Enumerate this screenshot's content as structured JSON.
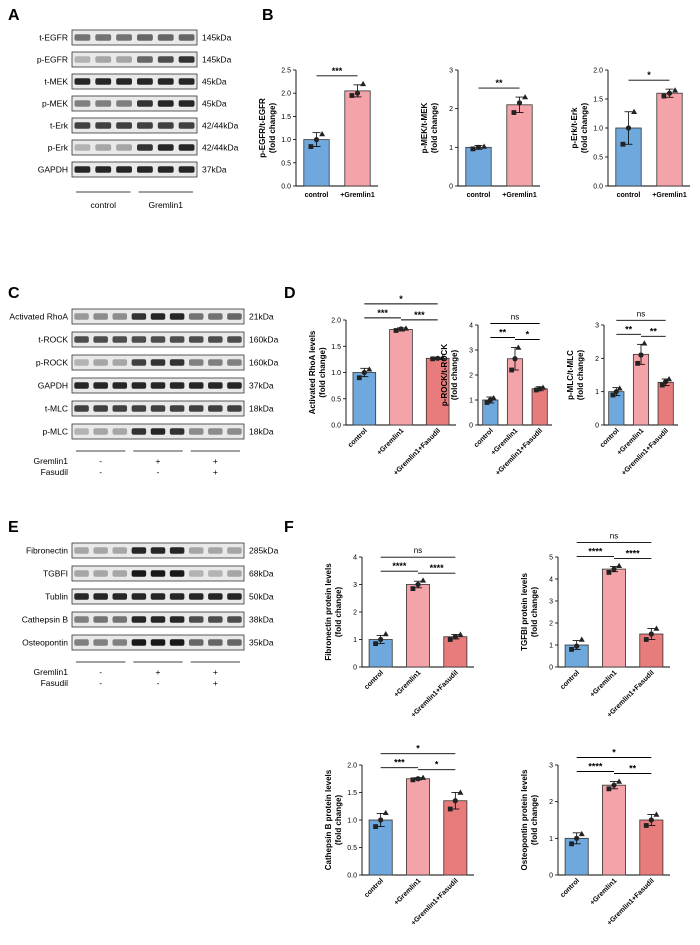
{
  "panels": {
    "A": "A",
    "B": "B",
    "C": "C",
    "D": "D",
    "E": "E",
    "F": "F"
  },
  "blots": [
    {
      "id": "A",
      "lanes": 6,
      "groups": [
        {
          "label": "control",
          "from": 0,
          "to": 3
        },
        {
          "label": "Gremlin1",
          "from": 3,
          "to": 6
        }
      ],
      "treat_rows": [],
      "rows": [
        {
          "name": "t-EGFR",
          "kda": "145kDa",
          "pattern": [
            0.55,
            0.55,
            0.55,
            0.6,
            0.6,
            0.6
          ]
        },
        {
          "name": "p-EGFR",
          "kda": "145kDa",
          "pattern": [
            0.3,
            0.35,
            0.35,
            0.6,
            0.7,
            0.8
          ]
        },
        {
          "name": "t-MEK",
          "kda": "45kDa",
          "pattern": [
            0.85,
            0.85,
            0.85,
            0.85,
            0.85,
            0.85
          ]
        },
        {
          "name": "p-MEK",
          "kda": "45kDa",
          "pattern": [
            0.5,
            0.5,
            0.5,
            0.8,
            0.85,
            0.85
          ]
        },
        {
          "name": "t-Erk",
          "kda": "42/44kDa",
          "pattern": [
            0.75,
            0.75,
            0.75,
            0.75,
            0.75,
            0.75
          ]
        },
        {
          "name": "p-Erk",
          "kda": "42/44kDa",
          "pattern": [
            0.3,
            0.35,
            0.35,
            0.8,
            0.85,
            0.85
          ]
        },
        {
          "name": "GAPDH",
          "kda": "37kDa",
          "pattern": [
            0.85,
            0.85,
            0.85,
            0.85,
            0.85,
            0.85
          ]
        }
      ]
    },
    {
      "id": "C",
      "lanes": 9,
      "groups": [],
      "treat_rows": [
        {
          "name": "Gremlin1",
          "signs": [
            "-",
            "+",
            "+"
          ]
        },
        {
          "name": "Fasudil",
          "signs": [
            "-",
            "-",
            "+"
          ]
        }
      ],
      "rows": [
        {
          "name": "Activated RhoA",
          "kda": "21kDa",
          "pattern": [
            0.4,
            0.45,
            0.45,
            0.8,
            0.85,
            0.85,
            0.55,
            0.55,
            0.6
          ]
        },
        {
          "name": "t-ROCK",
          "kda": "160kDa",
          "pattern": [
            0.7,
            0.7,
            0.7,
            0.7,
            0.7,
            0.7,
            0.7,
            0.7,
            0.7
          ]
        },
        {
          "name": "p-ROCK",
          "kda": "160kDa",
          "pattern": [
            0.3,
            0.35,
            0.35,
            0.75,
            0.8,
            0.8,
            0.5,
            0.5,
            0.5
          ]
        },
        {
          "name": "GAPDH",
          "kda": "37kDa",
          "pattern": [
            0.85,
            0.85,
            0.85,
            0.85,
            0.85,
            0.85,
            0.85,
            0.85,
            0.85
          ]
        },
        {
          "name": "t-MLC",
          "kda": "18kDa",
          "pattern": [
            0.75,
            0.75,
            0.75,
            0.75,
            0.75,
            0.75,
            0.75,
            0.75,
            0.75
          ]
        },
        {
          "name": "p-MLC",
          "kda": "18kDa",
          "pattern": [
            0.3,
            0.35,
            0.35,
            0.8,
            0.85,
            0.8,
            0.45,
            0.45,
            0.45
          ]
        }
      ]
    },
    {
      "id": "E",
      "lanes": 9,
      "groups": [],
      "treat_rows": [
        {
          "name": "Gremlin1",
          "signs": [
            "-",
            "+",
            "+"
          ]
        },
        {
          "name": "Fasudil",
          "signs": [
            "-",
            "-",
            "+"
          ]
        }
      ],
      "rows": [
        {
          "name": "Fibronectin",
          "kda": "285kDa",
          "pattern": [
            0.35,
            0.35,
            0.35,
            0.85,
            0.85,
            0.85,
            0.35,
            0.35,
            0.35
          ]
        },
        {
          "name": "TGBFI",
          "kda": "68kDa",
          "pattern": [
            0.35,
            0.35,
            0.35,
            0.9,
            0.9,
            0.9,
            0.3,
            0.3,
            0.35
          ]
        },
        {
          "name": "Tublin",
          "kda": "50kDa",
          "pattern": [
            0.85,
            0.85,
            0.85,
            0.85,
            0.85,
            0.85,
            0.85,
            0.85,
            0.85
          ]
        },
        {
          "name": "Cathepsin B",
          "kda": "38kDa",
          "pattern": [
            0.5,
            0.55,
            0.55,
            0.85,
            0.85,
            0.85,
            0.7,
            0.7,
            0.7
          ]
        },
        {
          "name": "Osteopontin",
          "kda": "35kDa",
          "pattern": [
            0.5,
            0.5,
            0.5,
            0.9,
            0.9,
            0.9,
            0.6,
            0.6,
            0.6
          ]
        }
      ]
    }
  ],
  "chart_data": [
    {
      "id": "B1",
      "type": "bar",
      "categories": [
        "control",
        "+Gremlin1"
      ],
      "values": [
        1.0,
        2.05
      ],
      "errors": [
        0.15,
        0.13
      ],
      "points": [
        [
          0.85,
          1.0,
          1.12
        ],
        [
          1.95,
          2.0,
          2.2
        ]
      ],
      "ylabel": "p-EGFR/t-EGFR\n(fold change)",
      "ylim": [
        0,
        2.5
      ],
      "ticks": [
        "0.0",
        "0.5",
        "1.0",
        "1.5",
        "2.0",
        "2.5"
      ],
      "colors": [
        "#6fa8dc",
        "#f4a3a8"
      ],
      "sig": [
        {
          "from": 0,
          "to": 1,
          "label": "***"
        }
      ]
    },
    {
      "id": "B2",
      "type": "bar",
      "categories": [
        "control",
        "+Gremlin1"
      ],
      "values": [
        1.0,
        2.1
      ],
      "errors": [
        0.05,
        0.2
      ],
      "points": [
        [
          0.96,
          1.0,
          1.02
        ],
        [
          1.9,
          2.15,
          2.3
        ]
      ],
      "ylabel": "p-MEK/t-MEK\n(fold change)",
      "ylim": [
        0,
        3
      ],
      "ticks": [
        "0",
        "1",
        "2",
        "3"
      ],
      "colors": [
        "#6fa8dc",
        "#f4a3a8"
      ],
      "sig": [
        {
          "from": 0,
          "to": 1,
          "label": "**"
        }
      ]
    },
    {
      "id": "B3",
      "type": "bar",
      "categories": [
        "control",
        "+Gremlin1"
      ],
      "values": [
        1.0,
        1.6
      ],
      "errors": [
        0.28,
        0.07
      ],
      "points": [
        [
          0.72,
          1.0,
          1.28
        ],
        [
          1.55,
          1.6,
          1.65
        ]
      ],
      "ylabel": "p-Erk/t-Erk\n(fold change)",
      "ylim": [
        0,
        2
      ],
      "ticks": [
        "0.0",
        "0.5",
        "1.0",
        "1.5",
        "2.0"
      ],
      "colors": [
        "#6fa8dc",
        "#f4a3a8"
      ],
      "sig": [
        {
          "from": 0,
          "to": 1,
          "label": "*"
        }
      ]
    },
    {
      "id": "D1",
      "type": "bar",
      "categories": [
        "control",
        "+Gremlin1",
        "+Gremlin1+Fasudil"
      ],
      "values": [
        1.0,
        1.82,
        1.27
      ],
      "errors": [
        0.08,
        0.03,
        0.02
      ],
      "points": [
        [
          0.9,
          1.0,
          1.06
        ],
        [
          1.8,
          1.83,
          1.84
        ],
        [
          1.26,
          1.27,
          1.28
        ]
      ],
      "ylabel": "Activated RhoA levels\n(fold change)",
      "ylim": [
        0,
        2.0
      ],
      "ticks": [
        "0.0",
        "0.5",
        "1.0",
        "1.5",
        "2.0"
      ],
      "colors": [
        "#6fa8dc",
        "#f4a3a8",
        "#e87c7c"
      ],
      "sig": [
        {
          "from": 0,
          "to": 1,
          "label": "***"
        },
        {
          "from": 1,
          "to": 2,
          "label": "***"
        },
        {
          "from": 0,
          "to": 2,
          "label": "*"
        }
      ]
    },
    {
      "id": "D2",
      "type": "bar",
      "categories": [
        "control",
        "+Gremlin1",
        "+Gremlin1+Fasudil"
      ],
      "values": [
        1.0,
        2.65,
        1.45
      ],
      "errors": [
        0.12,
        0.45,
        0.08
      ],
      "points": [
        [
          0.9,
          1.0,
          1.08
        ],
        [
          2.2,
          2.65,
          3.1
        ],
        [
          1.4,
          1.45,
          1.5
        ]
      ],
      "ylabel": "p-ROCK/t-ROCK\n(fold change)",
      "ylim": [
        0,
        4
      ],
      "ticks": [
        "0",
        "1",
        "2",
        "3",
        "4"
      ],
      "colors": [
        "#6fa8dc",
        "#f4a3a8",
        "#e87c7c"
      ],
      "sig": [
        {
          "from": 0,
          "to": 1,
          "label": "**"
        },
        {
          "from": 1,
          "to": 2,
          "label": "*"
        },
        {
          "from": 0,
          "to": 2,
          "label": "ns"
        }
      ]
    },
    {
      "id": "D3",
      "type": "bar",
      "categories": [
        "control",
        "+Gremlin1",
        "+Gremlin1+Fasudil"
      ],
      "values": [
        1.0,
        2.12,
        1.28
      ],
      "errors": [
        0.12,
        0.3,
        0.1
      ],
      "points": [
        [
          0.9,
          1.0,
          1.1
        ],
        [
          1.85,
          2.1,
          2.45
        ],
        [
          1.2,
          1.3,
          1.38
        ]
      ],
      "ylabel": "p-MLC/t-MLC\n(fold change)",
      "ylim": [
        0,
        3
      ],
      "ticks": [
        "0",
        "1",
        "2",
        "3"
      ],
      "colors": [
        "#6fa8dc",
        "#f4a3a8",
        "#e87c7c"
      ],
      "sig": [
        {
          "from": 0,
          "to": 1,
          "label": "**"
        },
        {
          "from": 1,
          "to": 2,
          "label": "**"
        },
        {
          "from": 0,
          "to": 2,
          "label": "ns"
        }
      ]
    },
    {
      "id": "F1",
      "type": "bar",
      "categories": [
        "control",
        "+Gremlin1",
        "+Gremlin1+Fasudil"
      ],
      "values": [
        1.0,
        3.0,
        1.1
      ],
      "errors": [
        0.15,
        0.12,
        0.08
      ],
      "points": [
        [
          0.85,
          1.0,
          1.2
        ],
        [
          2.85,
          3.0,
          3.15
        ],
        [
          1.0,
          1.1,
          1.18
        ]
      ],
      "ylabel": "Fibronectin protein levels\n(fold change)",
      "ylim": [
        0,
        4
      ],
      "ticks": [
        "0",
        "1",
        "2",
        "3",
        "4"
      ],
      "colors": [
        "#6fa8dc",
        "#f4a3a8",
        "#e87c7c"
      ],
      "sig": [
        {
          "from": 0,
          "to": 1,
          "label": "****"
        },
        {
          "from": 1,
          "to": 2,
          "label": "****"
        },
        {
          "from": 0,
          "to": 2,
          "label": "ns"
        }
      ]
    },
    {
      "id": "F2",
      "type": "bar",
      "categories": [
        "control",
        "+Gremlin1",
        "+Gremlin1+Fasudil"
      ],
      "values": [
        1.0,
        4.45,
        1.5
      ],
      "errors": [
        0.2,
        0.12,
        0.25
      ],
      "points": [
        [
          0.8,
          0.95,
          1.25
        ],
        [
          4.3,
          4.45,
          4.6
        ],
        [
          1.25,
          1.5,
          1.75
        ]
      ],
      "ylabel": "TGFBI protein levels\n(fold change)",
      "ylim": [
        0,
        5
      ],
      "ticks": [
        "0",
        "1",
        "2",
        "3",
        "4",
        "5"
      ],
      "colors": [
        "#6fa8dc",
        "#f4a3a8",
        "#e87c7c"
      ],
      "sig": [
        {
          "from": 0,
          "to": 1,
          "label": "****"
        },
        {
          "from": 1,
          "to": 2,
          "label": "****"
        },
        {
          "from": 0,
          "to": 2,
          "label": "ns"
        }
      ]
    },
    {
      "id": "F3",
      "type": "bar",
      "categories": [
        "control",
        "+Gremlin1",
        "+Gremlin1+Fasudil"
      ],
      "values": [
        1.0,
        1.75,
        1.35
      ],
      "errors": [
        0.12,
        0.02,
        0.15
      ],
      "points": [
        [
          0.88,
          1.0,
          1.13
        ],
        [
          1.73,
          1.75,
          1.77
        ],
        [
          1.2,
          1.35,
          1.5
        ]
      ],
      "ylabel": "Cathepsin B protein levels\n(fold change)",
      "ylim": [
        0,
        2.0
      ],
      "ticks": [
        "0.0",
        "0.5",
        "1.0",
        "1.5",
        "2.0"
      ],
      "colors": [
        "#6fa8dc",
        "#f4a3a8",
        "#e87c7c"
      ],
      "sig": [
        {
          "from": 0,
          "to": 1,
          "label": "***"
        },
        {
          "from": 1,
          "to": 2,
          "label": "*"
        },
        {
          "from": 0,
          "to": 2,
          "label": "*"
        }
      ]
    },
    {
      "id": "F4",
      "type": "bar",
      "categories": [
        "control",
        "+Gremlin1",
        "+Gremlin1+Fasudil"
      ],
      "values": [
        1.0,
        2.45,
        1.5
      ],
      "errors": [
        0.15,
        0.1,
        0.15
      ],
      "points": [
        [
          0.85,
          1.0,
          1.12
        ],
        [
          2.35,
          2.45,
          2.55
        ],
        [
          1.35,
          1.5,
          1.65
        ]
      ],
      "ylabel": "Osteopontin protein levels\n(fold change)",
      "ylim": [
        0,
        3
      ],
      "ticks": [
        "0",
        "1",
        "2",
        "3"
      ],
      "colors": [
        "#6fa8dc",
        "#f4a3a8",
        "#e87c7c"
      ],
      "sig": [
        {
          "from": 0,
          "to": 1,
          "label": "****"
        },
        {
          "from": 1,
          "to": 2,
          "label": "**"
        },
        {
          "from": 0,
          "to": 2,
          "label": "*"
        }
      ]
    }
  ]
}
